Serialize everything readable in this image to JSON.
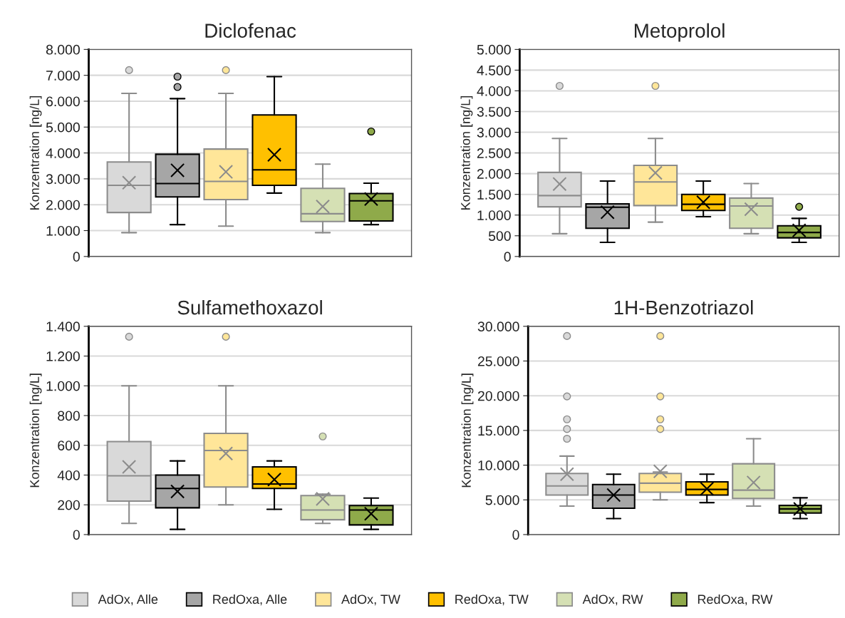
{
  "chart_data": [
    {
      "type": "box",
      "title": "Diclofenac",
      "ylabel": "Konzentration [ng/L]",
      "categories": [
        null
      ],
      "tick_labels": "y",
      "grid": "y",
      "legend": "bottom",
      "ylim": [
        0,
        8000
      ],
      "yticks": [
        0,
        {
          "value": 1000,
          "label": "1.000"
        },
        {
          "value": 2000,
          "label": "2.000"
        },
        {
          "value": 3000,
          "label": "3.000"
        },
        {
          "value": 4000,
          "label": "4.000"
        },
        {
          "value": 5000,
          "label": "5.000"
        },
        {
          "value": 6000,
          "label": "6.000"
        },
        {
          "value": 7000,
          "label": "7.000"
        },
        {
          "value": 8000,
          "label": "8.000"
        }
      ],
      "series": [
        {
          "name": "AdOx, Alle",
          "color": "#d9d9d9",
          "boxes": [
            {
              "low": 920,
              "q1": 1700,
              "median": 2750,
              "q3": 3650,
              "high": 6300,
              "mean": 2850,
              "outliers": [
                7200
              ]
            }
          ]
        },
        {
          "name": "RedOxa, Alle",
          "color": "#a6a6a6",
          "boxes": [
            {
              "low": 1230,
              "q1": 2300,
              "median": 2820,
              "q3": 3950,
              "high": 6100,
              "mean": 3330,
              "outliers": [
                6950,
                6550
              ]
            }
          ]
        },
        {
          "name": "AdOx, TW",
          "color": "#ffe699",
          "boxes": [
            {
              "low": 1170,
              "q1": 2200,
              "median": 2900,
              "q3": 4150,
              "high": 6300,
              "mean": 3270,
              "outliers": [
                7200
              ]
            }
          ]
        },
        {
          "name": "RedOxa, TW",
          "color": "#ffc000",
          "boxes": [
            {
              "low": 2450,
              "q1": 2750,
              "median": 3350,
              "q3": 5470,
              "high": 6950,
              "mean": 3930
            }
          ]
        },
        {
          "name": "AdOx, RW",
          "color": "#d5e0b4",
          "boxes": [
            {
              "low": 920,
              "q1": 1350,
              "median": 1650,
              "q3": 2630,
              "high": 3570,
              "mean": 1930
            }
          ]
        },
        {
          "name": "RedOxa, RW",
          "color": "#8faa4a",
          "boxes": [
            {
              "low": 1230,
              "q1": 1370,
              "median": 2150,
              "q3": 2430,
              "high": 2830,
              "mean": 2220,
              "outliers": [
                4830
              ]
            }
          ]
        }
      ]
    },
    {
      "type": "box",
      "title": "Metoprolol",
      "ylabel": "Konzentration [ng/L]",
      "categories": [
        null
      ],
      "tick_labels": "y",
      "grid": "y",
      "ylim": [
        0,
        5000
      ],
      "yticks": [
        0,
        500,
        {
          "value": 1000,
          "label": "1.000"
        },
        {
          "value": 1500,
          "label": "1.500"
        },
        {
          "value": 2000,
          "label": "2.000"
        },
        {
          "value": 2500,
          "label": "2.500"
        },
        {
          "value": 3000,
          "label": "3.000"
        },
        {
          "value": 3500,
          "label": "3.500"
        },
        {
          "value": 4000,
          "label": "4.000"
        },
        {
          "value": 4500,
          "label": "4.500"
        },
        {
          "value": 5000,
          "label": "5.000"
        }
      ],
      "series": [
        {
          "color": "#d9d9d9",
          "boxes": [
            {
              "low": 550,
              "q1": 1200,
              "median": 1470,
              "q3": 2030,
              "high": 2850,
              "mean": 1750,
              "outliers": [
                4120
              ]
            }
          ]
        },
        {
          "color": "#a6a6a6",
          "boxes": [
            {
              "low": 340,
              "q1": 680,
              "median": 1190,
              "q3": 1270,
              "high": 1820,
              "mean": 1070
            }
          ]
        },
        {
          "color": "#ffe699",
          "boxes": [
            {
              "low": 830,
              "q1": 1230,
              "median": 1800,
              "q3": 2200,
              "high": 2850,
              "mean": 2020,
              "outliers": [
                4120
              ]
            }
          ]
        },
        {
          "color": "#ffc000",
          "boxes": [
            {
              "low": 960,
              "q1": 1110,
              "median": 1260,
              "q3": 1500,
              "high": 1820,
              "mean": 1310
            }
          ]
        },
        {
          "color": "#d5e0b4",
          "boxes": [
            {
              "low": 550,
              "q1": 680,
              "median": 1220,
              "q3": 1410,
              "high": 1760,
              "mean": 1140
            }
          ]
        },
        {
          "color": "#8faa4a",
          "boxes": [
            {
              "low": 340,
              "q1": 450,
              "median": 580,
              "q3": 740,
              "high": 920,
              "mean": 630,
              "outliers": [
                1200
              ]
            }
          ]
        }
      ]
    },
    {
      "type": "box",
      "title": "Sulfamethoxazol",
      "ylabel": "Konzentration [ng/L]",
      "categories": [
        null
      ],
      "tick_labels": "y",
      "grid": "y",
      "ylim": [
        0,
        1400
      ],
      "yticks": [
        0,
        200,
        400,
        600,
        800,
        {
          "value": 1000,
          "label": "1.000"
        },
        {
          "value": 1200,
          "label": "1.200"
        },
        {
          "value": 1400,
          "label": "1.400"
        }
      ],
      "series": [
        {
          "color": "#d9d9d9",
          "boxes": [
            {
              "low": 75,
              "q1": 225,
              "median": 395,
              "q3": 625,
              "high": 1000,
              "mean": 455,
              "outliers": [
                1330
              ]
            }
          ]
        },
        {
          "color": "#a6a6a6",
          "boxes": [
            {
              "low": 35,
              "q1": 180,
              "median": 310,
              "q3": 400,
              "high": 495,
              "mean": 290
            }
          ]
        },
        {
          "color": "#ffe699",
          "boxes": [
            {
              "low": 200,
              "q1": 320,
              "median": 565,
              "q3": 680,
              "high": 1000,
              "mean": 545,
              "outliers": [
                1330
              ]
            }
          ]
        },
        {
          "color": "#ffc000",
          "boxes": [
            {
              "low": 170,
              "q1": 310,
              "median": 340,
              "q3": 455,
              "high": 495,
              "mean": 370
            }
          ]
        },
        {
          "color": "#d5e0b4",
          "boxes": [
            {
              "low": 75,
              "q1": 100,
              "median": 165,
              "q3": 262,
              "high": 271,
              "mean": 240,
              "outliers": [
                660
              ]
            }
          ]
        },
        {
          "color": "#8faa4a",
          "boxes": [
            {
              "low": 35,
              "q1": 65,
              "median": 165,
              "q3": 195,
              "high": 245,
              "mean": 140
            }
          ]
        }
      ]
    },
    {
      "type": "box",
      "title": "1H-Benzotriazol",
      "ylabel": "Konzentration [ng/L]",
      "categories": [
        null
      ],
      "tick_labels": "y",
      "grid": "y",
      "ylim": [
        0,
        30000
      ],
      "yticks": [
        0,
        {
          "value": 5000,
          "label": "5.000"
        },
        {
          "value": 10000,
          "label": "10.000"
        },
        {
          "value": 15000,
          "label": "15.000"
        },
        {
          "value": 20000,
          "label": "20.000"
        },
        {
          "value": 25000,
          "label": "25.000"
        },
        {
          "value": 30000,
          "label": "30.000"
        }
      ],
      "series": [
        {
          "color": "#d9d9d9",
          "boxes": [
            {
              "low": 4100,
              "q1": 5700,
              "median": 7000,
              "q3": 8800,
              "high": 11300,
              "mean": 8700,
              "outliers": [
                28600,
                19900,
                16600,
                15200,
                13800
              ]
            }
          ]
        },
        {
          "color": "#a6a6a6",
          "boxes": [
            {
              "low": 2300,
              "q1": 3800,
              "median": 5700,
              "q3": 7200,
              "high": 8700,
              "mean": 5700
            }
          ]
        },
        {
          "color": "#ffe699",
          "boxes": [
            {
              "low": 5000,
              "q1": 6100,
              "median": 7400,
              "q3": 8800,
              "high": 9000,
              "mean": 9100,
              "outliers": [
                28600,
                19900,
                16600,
                15200
              ]
            }
          ]
        },
        {
          "color": "#ffc000",
          "boxes": [
            {
              "low": 4600,
              "q1": 5700,
              "median": 6500,
              "q3": 7600,
              "high": 8700,
              "mean": 6600
            }
          ]
        },
        {
          "color": "#d5e0b4",
          "boxes": [
            {
              "low": 4100,
              "q1": 5200,
              "median": 6400,
              "q3": 10200,
              "high": 13800,
              "mean": 7500
            }
          ]
        },
        {
          "color": "#8faa4a",
          "boxes": [
            {
              "low": 2300,
              "q1": 3100,
              "median": 3700,
              "q3": 4200,
              "high": 5300,
              "mean": 3700
            }
          ]
        }
      ]
    }
  ]
}
